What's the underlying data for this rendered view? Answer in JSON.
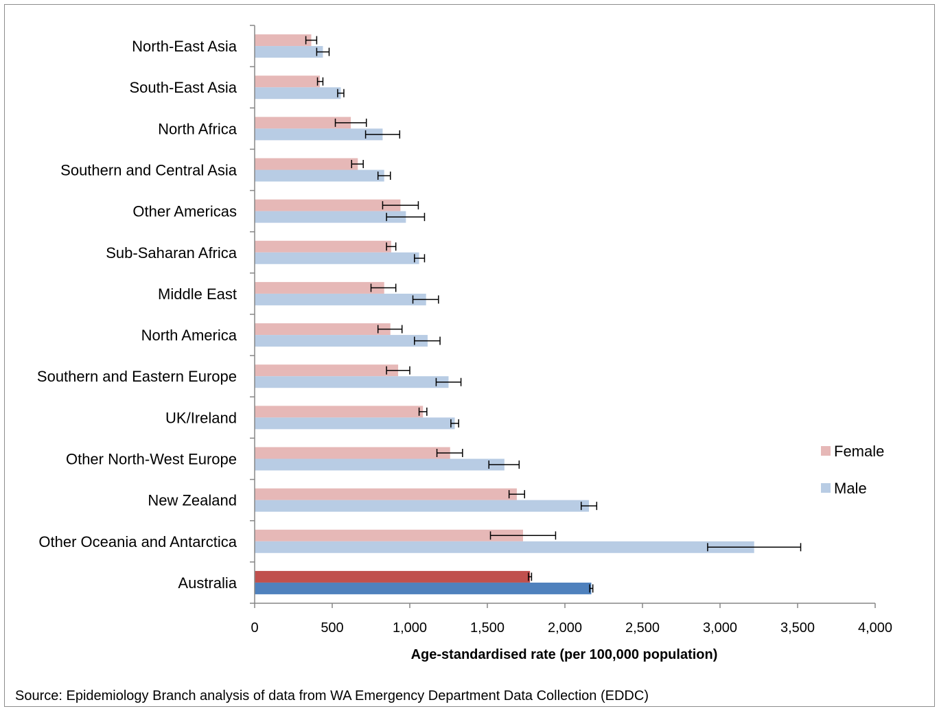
{
  "chart_data": {
    "type": "bar",
    "orientation": "horizontal",
    "categories": [
      "North-East Asia",
      "South-East Asia",
      "North Africa",
      "Southern and Central Asia",
      "Other Americas",
      "Sub-Saharan Africa",
      "Middle East",
      "North America",
      "Southern and Eastern Europe",
      "UK/Ireland",
      "Other North-West Europe",
      "New Zealand",
      "Other Oceania and Antarctica",
      "Australia"
    ],
    "series": [
      {
        "name": "Female",
        "color": "#e6b8b7",
        "highlight_color": "#c0504d",
        "values": [
          365,
          420,
          620,
          665,
          940,
          880,
          835,
          875,
          925,
          1085,
          1260,
          1690,
          1730,
          1775
        ],
        "err_low": [
          330,
          405,
          520,
          625,
          825,
          850,
          750,
          795,
          850,
          1060,
          1175,
          1640,
          1520,
          1765
        ],
        "err_high": [
          400,
          440,
          720,
          700,
          1055,
          910,
          910,
          950,
          1000,
          1110,
          1340,
          1740,
          1940,
          1785
        ]
      },
      {
        "name": "Male",
        "color": "#b8cce4",
        "highlight_color": "#4f81bd",
        "values": [
          440,
          555,
          825,
          835,
          975,
          1060,
          1105,
          1115,
          1250,
          1290,
          1610,
          2155,
          3220,
          2170
        ],
        "err_low": [
          400,
          535,
          715,
          795,
          850,
          1030,
          1020,
          1030,
          1170,
          1265,
          1510,
          2105,
          2920,
          2160
        ],
        "err_high": [
          480,
          575,
          935,
          875,
          1095,
          1095,
          1185,
          1195,
          1330,
          1315,
          1705,
          2205,
          3520,
          2180
        ]
      }
    ],
    "highlight_category": "Australia",
    "xlabel": "Age-standardised rate (per 100,000 population)",
    "xlim": [
      0,
      4000
    ],
    "xticks": [
      0,
      500,
      1000,
      1500,
      2000,
      2500,
      3000,
      3500,
      4000
    ],
    "xtick_labels": [
      "0",
      "500",
      "1,000",
      "1,500",
      "2,000",
      "2,500",
      "3,000",
      "3,500",
      "4,000"
    ],
    "grid": false,
    "legend_position": "right"
  },
  "source_note": "Source: Epidemiology Branch analysis of data from WA Emergency Department Data Collection (EDDC)"
}
